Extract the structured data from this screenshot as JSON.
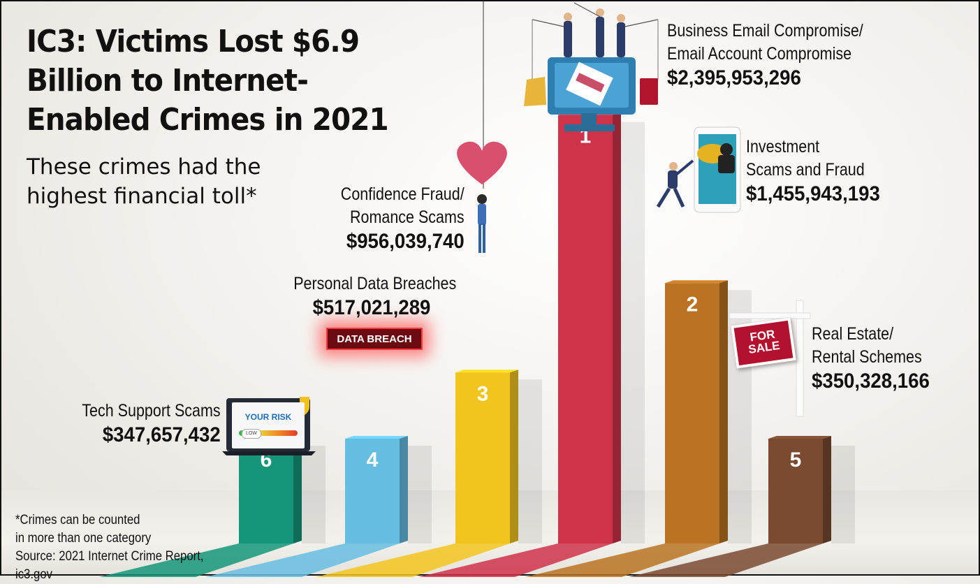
{
  "header": {
    "title": "IC3: Victims Lost $6.9 Billion to Internet-Enabled Crimes in 2021",
    "subtitle": "These crimes had the highest financial toll*"
  },
  "footnote": {
    "line1": "*Crimes can be counted",
    "line2": "in more than one category",
    "source": "Source: 2021 Internet Crime Report, ic3.gov"
  },
  "decorations": {
    "data_breach_badge": "DATA BREACH",
    "for_sale_sign_line1": "FOR",
    "for_sale_sign_line2": "SALE",
    "risk_screen_title": "YOUR RISK",
    "risk_screen_level": "LOW"
  },
  "colors": {
    "rank1": "#cf3349",
    "rank2": "#b97322",
    "rank3": "#f2c51e",
    "rank4": "#66bde2",
    "rank5": "#7a4a31",
    "rank6": "#15967a"
  },
  "chart_data": {
    "type": "bar",
    "title": "IC3: Victims Lost $6.9 Billion to Internet-Enabled Crimes in 2021",
    "xlabel": "",
    "ylabel": "",
    "grid": false,
    "legend": "none",
    "categories": [
      "Tech Support Scams",
      "Personal Data Breaches",
      "Confidence Fraud/ Romance Scams",
      "Business Email Compromise/ Email Account Compromise",
      "Investment Scams and Fraud",
      "Real Estate/ Rental Schemes"
    ],
    "values": [
      347657432,
      517021289,
      956039740,
      2395953296,
      1455943193,
      350328166
    ],
    "value_labels": [
      "$347,657,432",
      "$517,021,289",
      "$956,039,740",
      "$2,395,953,296",
      "$1,455,943,193",
      "$350,328,166"
    ],
    "ranks": [
      "6",
      "4",
      "3",
      "1",
      "2",
      "5"
    ],
    "name_lines": [
      [
        "Tech Support Scams"
      ],
      [
        "Personal Data Breaches"
      ],
      [
        "Confidence Fraud/",
        "Romance Scams"
      ],
      [
        "Business Email Compromise/",
        "Email Account Compromise"
      ],
      [
        "Investment",
        "Scams and Fraud"
      ],
      [
        "Real Estate/",
        "Rental Schemes"
      ]
    ]
  }
}
